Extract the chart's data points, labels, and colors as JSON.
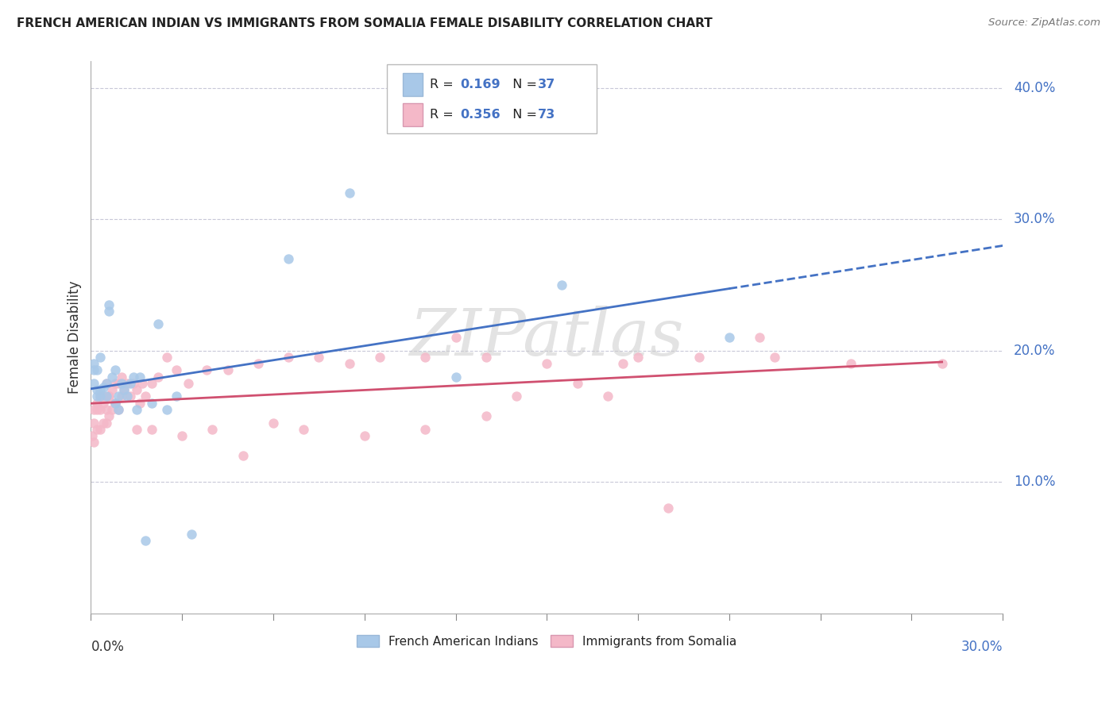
{
  "title": "FRENCH AMERICAN INDIAN VS IMMIGRANTS FROM SOMALIA FEMALE DISABILITY CORRELATION CHART",
  "source": "Source: ZipAtlas.com",
  "ylabel": "Female Disability",
  "legend_label1": "French American Indians",
  "legend_label2": "Immigrants from Somalia",
  "R1": "0.169",
  "N1": "37",
  "R2": "0.356",
  "N2": "73",
  "color_blue": "#a8c8e8",
  "color_pink": "#f4b8c8",
  "color_blue_text": "#4472c4",
  "line_blue": "#4472c4",
  "line_pink": "#d05070",
  "watermark": "ZIPatlas",
  "blue_scatter_x": [
    0.001,
    0.001,
    0.002,
    0.002,
    0.003,
    0.003,
    0.004,
    0.005,
    0.005,
    0.006,
    0.006,
    0.007,
    0.008,
    0.008,
    0.009,
    0.009,
    0.01,
    0.011,
    0.012,
    0.013,
    0.014,
    0.015,
    0.016,
    0.018,
    0.02,
    0.022,
    0.025,
    0.028,
    0.033,
    0.065,
    0.085,
    0.12,
    0.155,
    0.21,
    0.001,
    0.002,
    0.003
  ],
  "blue_scatter_y": [
    0.19,
    0.175,
    0.17,
    0.185,
    0.195,
    0.17,
    0.172,
    0.165,
    0.175,
    0.23,
    0.235,
    0.18,
    0.16,
    0.185,
    0.155,
    0.165,
    0.175,
    0.17,
    0.165,
    0.175,
    0.18,
    0.155,
    0.18,
    0.055,
    0.16,
    0.22,
    0.155,
    0.165,
    0.06,
    0.27,
    0.32,
    0.18,
    0.25,
    0.21,
    0.185,
    0.165,
    0.165
  ],
  "pink_scatter_x": [
    0.0005,
    0.001,
    0.001,
    0.001,
    0.002,
    0.002,
    0.002,
    0.003,
    0.003,
    0.003,
    0.004,
    0.004,
    0.004,
    0.005,
    0.005,
    0.005,
    0.006,
    0.006,
    0.007,
    0.007,
    0.008,
    0.008,
    0.009,
    0.009,
    0.01,
    0.01,
    0.011,
    0.012,
    0.013,
    0.014,
    0.015,
    0.016,
    0.017,
    0.018,
    0.02,
    0.022,
    0.025,
    0.028,
    0.032,
    0.038,
    0.045,
    0.055,
    0.065,
    0.075,
    0.085,
    0.095,
    0.11,
    0.13,
    0.15,
    0.175,
    0.2,
    0.225,
    0.25,
    0.28,
    0.05,
    0.12,
    0.18,
    0.22,
    0.19,
    0.14,
    0.16,
    0.17,
    0.13,
    0.11,
    0.09,
    0.07,
    0.06,
    0.04,
    0.03,
    0.02,
    0.015,
    0.008,
    0.006
  ],
  "pink_scatter_y": [
    0.135,
    0.13,
    0.145,
    0.155,
    0.14,
    0.155,
    0.16,
    0.14,
    0.155,
    0.165,
    0.145,
    0.16,
    0.165,
    0.145,
    0.155,
    0.175,
    0.15,
    0.165,
    0.155,
    0.17,
    0.16,
    0.175,
    0.155,
    0.175,
    0.165,
    0.18,
    0.17,
    0.175,
    0.165,
    0.175,
    0.17,
    0.16,
    0.175,
    0.165,
    0.175,
    0.18,
    0.195,
    0.185,
    0.175,
    0.185,
    0.185,
    0.19,
    0.195,
    0.195,
    0.19,
    0.195,
    0.195,
    0.195,
    0.19,
    0.19,
    0.195,
    0.195,
    0.19,
    0.19,
    0.12,
    0.21,
    0.195,
    0.21,
    0.08,
    0.165,
    0.175,
    0.165,
    0.15,
    0.14,
    0.135,
    0.14,
    0.145,
    0.14,
    0.135,
    0.14,
    0.14,
    0.16,
    0.165
  ],
  "xlim": [
    0.0,
    0.3
  ],
  "ylim": [
    0.0,
    0.42
  ],
  "ytick_vals": [
    0.1,
    0.2,
    0.3,
    0.4
  ],
  "background_color": "#ffffff",
  "grid_color": "#c8c8d8"
}
